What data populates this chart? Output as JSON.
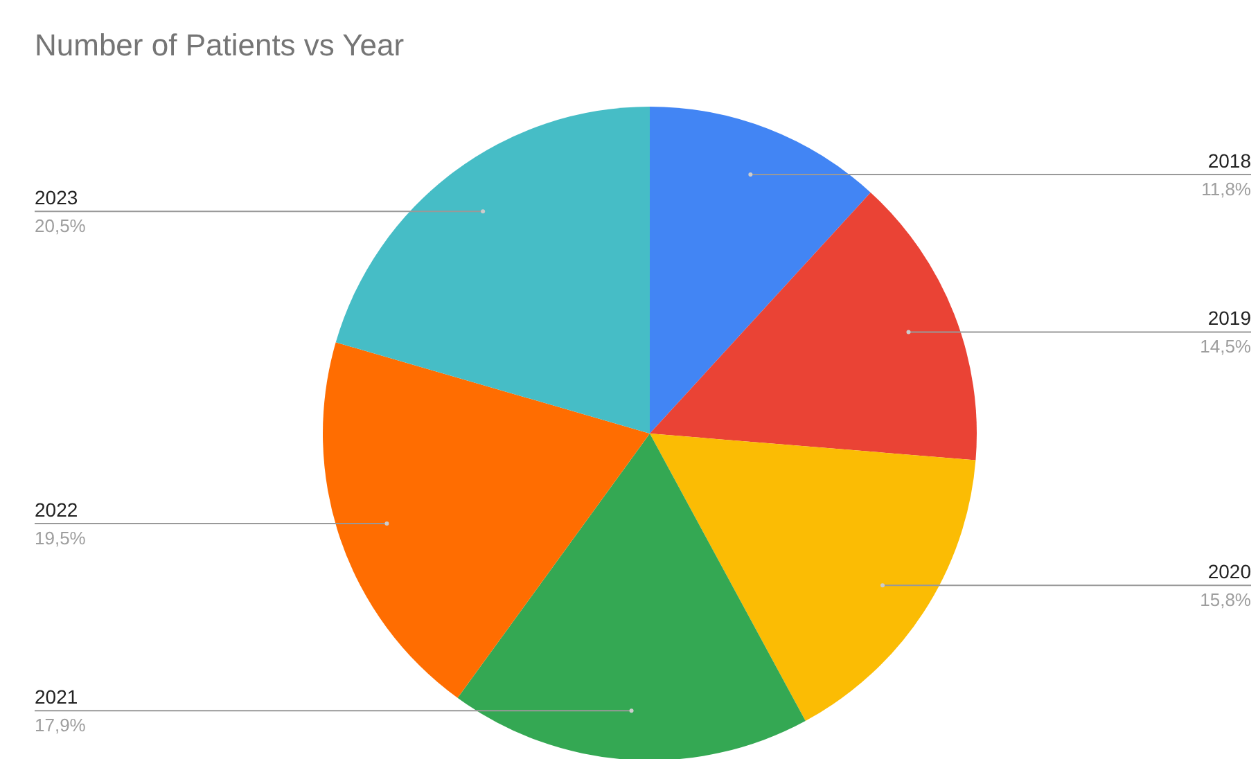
{
  "chart_data": {
    "type": "pie",
    "title": "Number of Patients vs Year",
    "categories": [
      "2018",
      "2019",
      "2020",
      "2021",
      "2022",
      "2023"
    ],
    "values": [
      11.8,
      14.5,
      15.8,
      17.9,
      19.5,
      20.5
    ],
    "value_labels": [
      "11,8%",
      "14,5%",
      "15,8%",
      "17,9%",
      "19,5%",
      "20,5%"
    ],
    "colors": [
      "#4285f4",
      "#ea4335",
      "#fbbc04",
      "#34a853",
      "#ff6d01",
      "#46bdc6"
    ],
    "legend": false
  }
}
